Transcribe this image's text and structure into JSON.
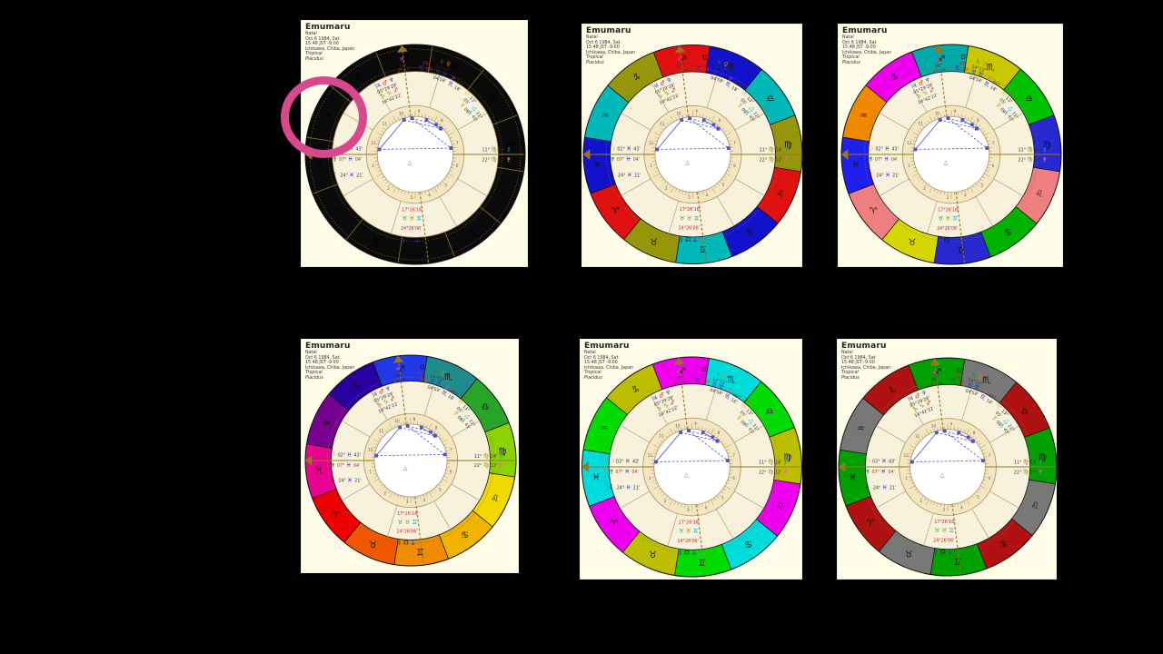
{
  "app": {
    "background_color": "#000000",
    "panel_background": "#FFFDE7"
  },
  "header": {
    "title": "Emumaru",
    "lines": [
      "Natal",
      "Oct 6 1984, Sat",
      "15:48 JST -9:00",
      "Ichikawa, Chiba, Japan",
      "Tropical",
      "Placidus"
    ]
  },
  "annotation": {
    "shape": "circle",
    "color": "#D9488C",
    "target": "chart-1-aquarius-pisces-region"
  },
  "zodiac_signs": [
    "♈",
    "♉",
    "♊",
    "♋",
    "♌",
    "♍",
    "♎",
    "♏",
    "♐",
    "♑",
    "♒",
    "♓"
  ],
  "house_numbers": [
    "1",
    "2",
    "3",
    "4",
    "5",
    "6",
    "7",
    "8",
    "9",
    "10",
    "11",
    "12"
  ],
  "palettes": {
    "black": {
      "colors": [
        "#0A0A0A",
        "#0A0A0A",
        "#0A0A0A",
        "#0A0A0A",
        "#0A0A0A",
        "#0A0A0A",
        "#0A0A0A",
        "#0A0A0A",
        "#0A0A0A",
        "#0A0A0A",
        "#0A0A0A",
        "#0A0A0A"
      ],
      "divider": "#8A7430",
      "sign_color": "#000000",
      "extra_dotted": true
    },
    "olive-cyan-blue-red": {
      "colors": [
        "#E01010",
        "#96960A",
        "#00B8B8",
        "#1212CC",
        "#E01010",
        "#96960A",
        "#00B8B8",
        "#1212CC",
        "#E01010",
        "#96960A",
        "#00B8B8",
        "#1212CC"
      ],
      "divider": "#111111",
      "sign_color": "#101010",
      "extra_dotted": false
    },
    "mixed-12": {
      "colors": [
        "#F08080",
        "#D6D600",
        "#2828D0",
        "#00B300",
        "#F08080",
        "#2828D0",
        "#00C300",
        "#C8C800",
        "#00AAAA",
        "#EE00EE",
        "#F08800",
        "#2020EE"
      ],
      "divider": "#111111",
      "sign_color": "#101010",
      "extra_dotted": false
    },
    "spectrum": {
      "colors": [
        "#EE0000",
        "#F05800",
        "#F08C00",
        "#F0B400",
        "#F0D800",
        "#8CD200",
        "#28A428",
        "#1E8C8C",
        "#2038E8",
        "#2800A0",
        "#780090",
        "#E80290"
      ],
      "divider": "#111111",
      "sign_color": "#101010",
      "extra_dotted": false
    },
    "magenta-cyan-green-olive": {
      "colors": [
        "#EE00EE",
        "#BEBE00",
        "#00DC00",
        "#00DCDC",
        "#EE00EE",
        "#BEBE00",
        "#00DC00",
        "#00DCDC",
        "#EE00EE",
        "#BEBE00",
        "#00DC00",
        "#00DCDC"
      ],
      "divider": "#111111",
      "sign_color": "#101010",
      "extra_dotted": false
    },
    "green-gray-darkred": {
      "colors": [
        "#B01212",
        "#787878",
        "#00A000",
        "#B01212",
        "#787878",
        "#00A000",
        "#B01212",
        "#787878",
        "#00A000",
        "#B01212",
        "#787878",
        "#00A000"
      ],
      "divider": "#111111",
      "sign_color": "#101010",
      "extra_dotted": false
    }
  },
  "panels": [
    {
      "id": "chart-1",
      "palette": "black"
    },
    {
      "id": "chart-2",
      "palette": "olive-cyan-blue-red"
    },
    {
      "id": "chart-3",
      "palette": "mixed-12"
    },
    {
      "id": "chart-4",
      "palette": "spectrum"
    },
    {
      "id": "chart-5",
      "palette": "magenta-cyan-green-olive"
    },
    {
      "id": "chart-6",
      "palette": "green-gray-darkred"
    }
  ],
  "wheel": {
    "colors": {
      "axis": "#997722",
      "house_line": "#B0A080",
      "band_fill": "#F3E6C0",
      "annulus_fill": "#F8F1DC",
      "band_stroke": "#A8945A",
      "aspect": "#5050C8",
      "house_number": "#555555",
      "tick": "#A89055"
    },
    "house_cusps": [
      150,
      107,
      60,
      30,
      330,
      287,
      240,
      210
    ],
    "house_number_angles": [
      165,
      128,
      95,
      71,
      45,
      15,
      345,
      308,
      275,
      251,
      225,
      195
    ],
    "planets": [
      {
        "name": "jupiter-mars-neptune-cluster",
        "angle": 247,
        "radius": 0.63,
        "rows": [
          [
            {
              "t": "♃",
              "c": "#2244CC",
              "g": 1
            },
            {
              "t": "♂",
              "c": "#CC2200",
              "g": 1
            },
            {
              "t": "♆",
              "c": "#3355CC",
              "g": 1
            }
          ],
          [
            {
              "t": "05°29'28'",
              "c": "#333333"
            }
          ],
          [
            {
              "t": "♑",
              "c": "#AA8800",
              "g": 1
            },
            {
              "t": "♑",
              "c": "#AA8800",
              "g": 1
            },
            {
              "t": "♐",
              "c": "#CC2200",
              "g": 1
            }
          ],
          [
            {
              "t": "14°42'22'",
              "c": "#333333"
            }
          ]
        ]
      },
      {
        "name": "uranus-cluster",
        "angle": 262,
        "radius": 0.82,
        "rows": [
          [
            {
              "t": "♅",
              "c": "#CC44CC",
              "g": 1
            }
          ],
          [
            {
              "t": "10°",
              "c": "#333333"
            }
          ],
          [
            {
              "t": "♐",
              "c": "#CC2200",
              "g": 1
            },
            {
              "t": "22'",
              "c": "#333333"
            }
          ]
        ]
      },
      {
        "name": "south-node-cluster",
        "angle": 277,
        "radius": 0.84,
        "rows": [
          [
            {
              "t": "℧",
              "c": "#111111",
              "g": 1
            }
          ],
          [
            {
              "t": "28°",
              "c": "#CC2222"
            }
          ],
          [
            {
              "t": "♏",
              "c": "#2233CC",
              "g": 1
            },
            {
              "t": "28'",
              "c": "#CC2222"
            }
          ]
        ]
      },
      {
        "name": "saturn-venus-cluster",
        "angle": 288,
        "radius": 0.8,
        "rows": [
          [
            {
              "t": "♄",
              "c": "#118833",
              "g": 1
            },
            {
              "t": "♀",
              "c": "#DD8800",
              "g": 1
            }
          ],
          [
            {
              "t": "14°12°",
              "c": "#333333"
            }
          ],
          [
            {
              "t": "♏",
              "c": "#2233CC",
              "g": 1
            },
            {
              "t": "♏",
              "c": "#2233CC",
              "g": 1
            }
          ],
          [
            {
              "t": "04'58'",
              "c": "#333333"
            }
          ]
        ]
      },
      {
        "name": "pluto-cluster",
        "angle": 300,
        "radius": 0.74,
        "rows": [
          [
            {
              "t": "♇",
              "c": "#DD55BB",
              "g": 1
            },
            {
              "t": "01°",
              "c": "#333333"
            }
          ],
          [
            {
              "t": "♏",
              "c": "#2233CC",
              "g": 1
            },
            {
              "t": "18'",
              "c": "#333333"
            }
          ]
        ]
      },
      {
        "name": "sun-cluster",
        "angle": 314,
        "radius": 0.7,
        "rows": [
          [
            {
              "t": "☉",
              "c": "#CC9900",
              "g": 1
            },
            {
              "t": "13°",
              "c": "#333333"
            }
          ],
          [
            {
              "t": "05'",
              "c": "#333333"
            }
          ]
        ]
      },
      {
        "name": "mercury-cluster",
        "angle": 318,
        "radius": 0.62,
        "rows": [
          [
            {
              "t": "☿",
              "c": "#CC9900",
              "g": 1
            },
            {
              "t": "09°",
              "c": "#333333"
            }
          ]
        ]
      },
      {
        "name": "pallas-fortune-cluster",
        "angle": 326,
        "radius": 0.66,
        "rows": [
          [
            {
              "t": "△",
              "c": "#00AACC",
              "g": 1
            },
            {
              "t": "11°",
              "c": "#333333"
            }
          ],
          [
            {
              "t": "△",
              "c": "#00AACC",
              "g": 1
            },
            {
              "t": "45'",
              "c": "#333333"
            }
          ]
        ]
      },
      {
        "name": "virgo-point-upper",
        "angle": 356.5,
        "radius": 0.74,
        "rows": [
          [
            {
              "t": "11°",
              "c": "#333333"
            },
            {
              "t": "♍",
              "c": "#8A8A00",
              "g": 1
            },
            {
              "t": "14'",
              "c": "#333333"
            },
            {
              "t": "⚷",
              "c": "#00AACC",
              "g": 1
            }
          ]
        ]
      },
      {
        "name": "virgo-point-lower",
        "angle": 3.5,
        "radius": 0.74,
        "rows": [
          [
            {
              "t": "22°",
              "c": "#333333"
            },
            {
              "t": "♍",
              "c": "#8A8A00",
              "g": 1
            },
            {
              "t": "12'",
              "c": "#333333"
            },
            {
              "t": "⚵",
              "c": "#EE55CC",
              "g": 1
            }
          ]
        ]
      },
      {
        "name": "moon-cluster",
        "angle": 185,
        "radius": 0.62,
        "rows": [
          [
            {
              "t": "☽",
              "c": "#CCAA00",
              "g": 1
            },
            {
              "t": "02°",
              "c": "#333333"
            },
            {
              "t": "♓",
              "c": "#2233CC",
              "g": 1
            },
            {
              "t": "43'",
              "c": "#333333"
            }
          ]
        ]
      },
      {
        "name": "ascendant-label",
        "angle": 176,
        "radius": 0.62,
        "rows": [
          [
            {
              "t": "⚵",
              "c": "#22AA22",
              "g": 1
            },
            {
              "t": "07°",
              "c": "#CC2222"
            },
            {
              "t": "♓",
              "c": "#2233CC",
              "g": 1
            },
            {
              "t": "04'",
              "c": "#CC2222"
            }
          ]
        ]
      },
      {
        "name": "lilith-cluster",
        "angle": 163,
        "radius": 0.64,
        "rows": [
          [
            {
              "t": "☾",
              "c": "#111111",
              "g": 1
            },
            {
              "t": "24°",
              "c": "#333333"
            },
            {
              "t": "♓",
              "c": "#2233CC",
              "g": 1
            },
            {
              "t": "21'",
              "c": "#333333"
            }
          ]
        ]
      },
      {
        "name": "ic-degrees-1",
        "angle": 93,
        "radius": 0.5,
        "rows": [
          [
            {
              "t": "17°26'16'",
              "c": "#CC2222"
            }
          ]
        ]
      },
      {
        "name": "ic-signs",
        "angle": 93,
        "radius": 0.585,
        "rows": [
          [
            {
              "t": "♉",
              "c": "#22AA22",
              "g": 1
            },
            {
              "t": "♉",
              "c": "#8A8A00",
              "g": 1
            },
            {
              "t": "♊",
              "c": "#00AACC",
              "g": 1
            }
          ]
        ]
      },
      {
        "name": "ic-degrees-2",
        "angle": 93,
        "radius": 0.67,
        "rows": [
          [
            {
              "t": "24°26'06'",
              "c": "#CC2222"
            }
          ]
        ]
      },
      {
        "name": "north-node-cluster",
        "angle": 93,
        "radius": 0.78,
        "rows": [
          [
            {
              "t": "⚷",
              "c": "#2233CC",
              "g": 1
            },
            {
              "t": "☊",
              "c": "#111111",
              "g": 1
            },
            {
              "t": "⚶",
              "c": "#2233CC",
              "g": 1
            }
          ]
        ]
      }
    ],
    "aspects": {
      "segments": [
        [
          188,
          252
        ],
        [
          188,
          350
        ],
        [
          252,
          315
        ],
        [
          265,
          305
        ],
        [
          265,
          350
        ],
        [
          288,
          314
        ]
      ],
      "dashed": [
        false,
        true,
        true,
        true,
        true,
        false
      ],
      "trine_marker": {
        "glyph": "△",
        "angle": 120,
        "radius": 0.1
      }
    }
  }
}
